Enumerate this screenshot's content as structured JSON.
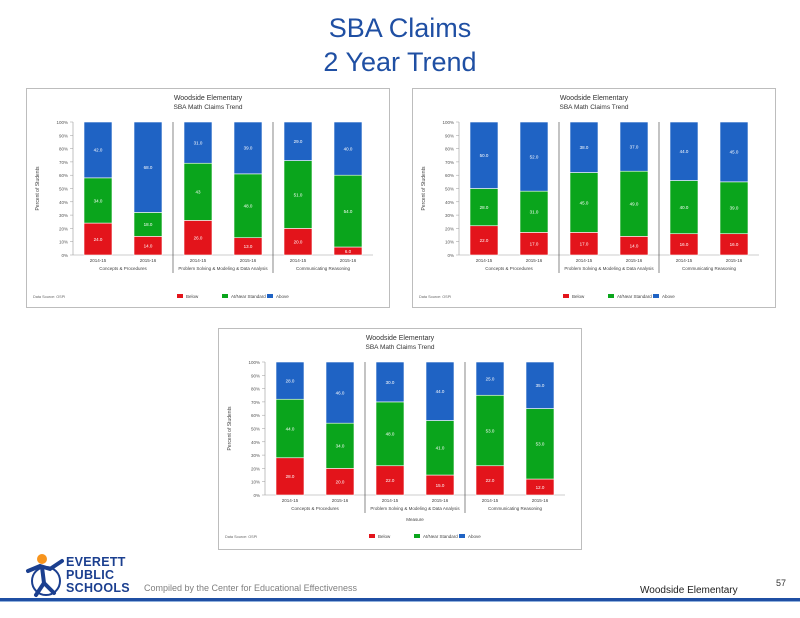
{
  "slide": {
    "title_line1": "SBA Claims",
    "title_line2": "2 Year Trend",
    "compiled": "Compiled by the Center for Educational Effectiveness",
    "school": "Woodside Elementary",
    "page_number": "57",
    "logo_lines": [
      "EVERETT",
      "PUBLIC",
      "SCHOOLS"
    ]
  },
  "colors": {
    "red": "#e3141b",
    "green": "#0aa51c",
    "blue": "#1f63c4"
  },
  "chart_data": [
    {
      "type": "bar",
      "stacked": true,
      "title": "Woodside Elementary",
      "subtitle": "SBA Math Claims Trend",
      "ylabel": "Percent of Students",
      "ylim": [
        0,
        100
      ],
      "yticks": [
        "0%",
        "10%",
        "20%",
        "30%",
        "40%",
        "50%",
        "60%",
        "70%",
        "80%",
        "90%",
        "100%"
      ],
      "categories": [
        "2014-15",
        "2015-16",
        "2014-15",
        "2015-16",
        "2014-15",
        "2015-16"
      ],
      "groups": [
        "Concepts & Procedures",
        "Problem Solving & Modeling & Data Analysis",
        "Communicating Reasoning"
      ],
      "series": [
        {
          "name": "Below",
          "color": "#e3141b",
          "values": [
            24,
            14,
            26,
            13,
            20,
            6
          ],
          "labels": [
            "24.0",
            "14.0",
            "26.0",
            "13.0",
            "20.0",
            "6.0"
          ]
        },
        {
          "name": "At/Near Standard",
          "color": "#0aa51c",
          "values": [
            34,
            18,
            43,
            48,
            51,
            54
          ],
          "labels": [
            "34.0",
            "18.0",
            "43",
            "48.0",
            "51.0",
            "54.0"
          ]
        },
        {
          "name": "Above",
          "color": "#1f63c4",
          "values": [
            42,
            68,
            31,
            39,
            29,
            40
          ],
          "labels": [
            "42.0",
            "68.0",
            "31.0",
            "39.0",
            "29.0",
            "40.0"
          ]
        }
      ],
      "legend_position": "bottom",
      "footnote": "Data Source: OSPI"
    },
    {
      "type": "bar",
      "stacked": true,
      "title": "Woodside Elementary",
      "subtitle": "SBA Math Claims Trend",
      "ylabel": "Percent of Students",
      "ylim": [
        0,
        100
      ],
      "yticks": [
        "0%",
        "10%",
        "20%",
        "30%",
        "40%",
        "50%",
        "60%",
        "70%",
        "80%",
        "90%",
        "100%"
      ],
      "categories": [
        "2014-15",
        "2015-16",
        "2014-15",
        "2015-16",
        "2014-15",
        "2015-16"
      ],
      "groups": [
        "Concepts & Procedures",
        "Problem Solving & Modeling & Data Analysis",
        "Communicating Reasoning"
      ],
      "series": [
        {
          "name": "Below",
          "color": "#e3141b",
          "values": [
            22,
            17,
            17,
            14,
            16,
            16
          ],
          "labels": [
            "22.0",
            "17.0",
            "17.0",
            "14.0",
            "16.0",
            "16.0"
          ]
        },
        {
          "name": "At/Near Standard",
          "color": "#0aa51c",
          "values": [
            28,
            31,
            45,
            49,
            40,
            39
          ],
          "labels": [
            "28.0",
            "31.0",
            "45.0",
            "49.0",
            "40.0",
            "39.0"
          ]
        },
        {
          "name": "Above",
          "color": "#1f63c4",
          "values": [
            50,
            52,
            38,
            37,
            44,
            45
          ],
          "labels": [
            "50.0",
            "52.0",
            "38.0",
            "37.0",
            "44.0",
            "45.0"
          ]
        }
      ],
      "legend_position": "bottom",
      "footnote": "Data Source: OSPI"
    },
    {
      "type": "bar",
      "stacked": true,
      "title": "Woodside Elementary",
      "subtitle": "SBA Math Claims Trend",
      "ylabel": "Percent of Students",
      "ylim": [
        0,
        100
      ],
      "yticks": [
        "0%",
        "10%",
        "20%",
        "30%",
        "40%",
        "50%",
        "60%",
        "70%",
        "80%",
        "90%",
        "100%"
      ],
      "categories": [
        "2014-15",
        "2015-16",
        "2014-15",
        "2015-16",
        "2014-15",
        "2015-16"
      ],
      "groups": [
        "Concepts & Procedures",
        "Problem Solving & Modeling & Data Analysis",
        "Communicating Reasoning"
      ],
      "xlabel": "Measure",
      "series": [
        {
          "name": "Below",
          "color": "#e3141b",
          "values": [
            28,
            20,
            22,
            15,
            22,
            12
          ],
          "labels": [
            "28.0",
            "20.0",
            "22.0",
            "15.0",
            "22.0",
            "12.0"
          ]
        },
        {
          "name": "At/Near Standard",
          "color": "#0aa51c",
          "values": [
            44,
            34,
            48,
            41,
            53,
            53
          ],
          "labels": [
            "44.0",
            "34.0",
            "48.0",
            "41.0",
            "53.0",
            "53.0"
          ]
        },
        {
          "name": "Above",
          "color": "#1f63c4",
          "values": [
            28,
            46,
            30,
            44,
            25,
            35
          ],
          "labels": [
            "28.0",
            "46.0",
            "30.0",
            "44.0",
            "25.0",
            "35.0"
          ]
        }
      ],
      "legend_position": "bottom",
      "footnote": "Data Source: OSPI"
    }
  ]
}
